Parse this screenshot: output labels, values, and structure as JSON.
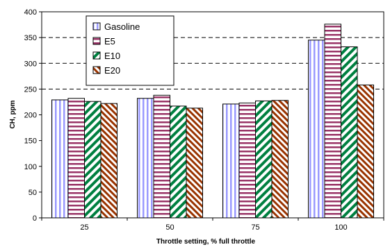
{
  "chart_data": {
    "type": "bar",
    "xlabel": "Throttle setting, % full throttle",
    "ylabel": "CH, ppm",
    "categories": [
      "25",
      "50",
      "75",
      "100"
    ],
    "ylim": [
      0,
      400
    ],
    "yticks": [
      "0",
      "50",
      "100",
      "150",
      "200",
      "250",
      "300",
      "350",
      "400"
    ],
    "grid": "dashed horizontal lines above the lowest series",
    "legend_position": "top-left",
    "series": [
      {
        "name": "Gasoline",
        "values": [
          229,
          232,
          221,
          345
        ],
        "color": "#9999ff",
        "pattern": "vertical-stripes"
      },
      {
        "name": "E5",
        "values": [
          232,
          238,
          223,
          376
        ],
        "color": "#993366",
        "pattern": "horizontal-stripes"
      },
      {
        "name": "E10",
        "values": [
          226,
          217,
          227,
          332
        ],
        "color": "#008040",
        "pattern": "diagonal-stripes"
      },
      {
        "name": "E20",
        "values": [
          222,
          213,
          228,
          258
        ],
        "color": "#993300",
        "pattern": "diagonal-stripes"
      }
    ]
  }
}
